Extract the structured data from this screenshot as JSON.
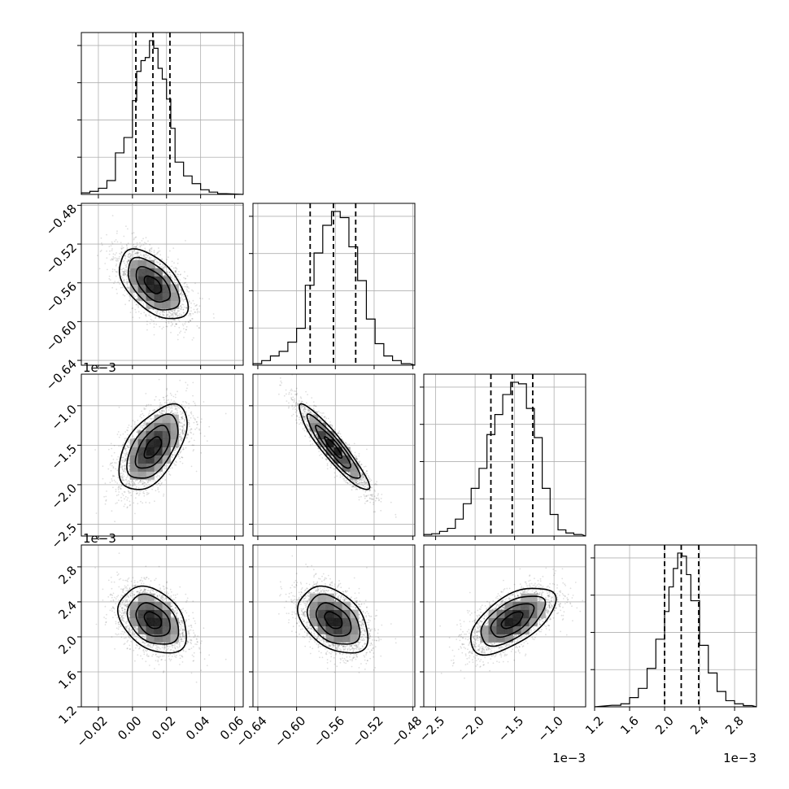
{
  "chart_data": {
    "type": "corner",
    "parameters": [
      {
        "index": 0,
        "range": [
          -0.03,
          0.065
        ],
        "ticks": [
          -0.02,
          0.0,
          0.02,
          0.04,
          0.06
        ],
        "tick_labels": [
          "−0.02",
          "0.00",
          "0.02",
          "0.04",
          "0.06"
        ],
        "offset_text": "",
        "quantiles": [
          0.002,
          0.012,
          0.022
        ],
        "hist": [
          {
            "x0": -0.03,
            "x1": -0.025,
            "v": 1
          },
          {
            "x0": -0.025,
            "x1": -0.02,
            "v": 2
          },
          {
            "x0": -0.02,
            "x1": -0.015,
            "v": 4
          },
          {
            "x0": -0.015,
            "x1": -0.01,
            "v": 9
          },
          {
            "x0": -0.01,
            "x1": -0.005,
            "v": 27
          },
          {
            "x0": -0.005,
            "x1": 0.0,
            "v": 37
          },
          {
            "x0": 0.0,
            "x1": 0.0025,
            "v": 61
          },
          {
            "x0": 0.0025,
            "x1": 0.005,
            "v": 80
          },
          {
            "x0": 0.005,
            "x1": 0.0075,
            "v": 87
          },
          {
            "x0": 0.0075,
            "x1": 0.01,
            "v": 89
          },
          {
            "x0": 0.01,
            "x1": 0.0125,
            "v": 100
          },
          {
            "x0": 0.0125,
            "x1": 0.015,
            "v": 95
          },
          {
            "x0": 0.015,
            "x1": 0.0175,
            "v": 82
          },
          {
            "x0": 0.0175,
            "x1": 0.02,
            "v": 75
          },
          {
            "x0": 0.02,
            "x1": 0.0225,
            "v": 62
          },
          {
            "x0": 0.0225,
            "x1": 0.025,
            "v": 43
          },
          {
            "x0": 0.025,
            "x1": 0.03,
            "v": 21
          },
          {
            "x0": 0.03,
            "x1": 0.035,
            "v": 12
          },
          {
            "x0": 0.035,
            "x1": 0.04,
            "v": 7
          },
          {
            "x0": 0.04,
            "x1": 0.045,
            "v": 3
          },
          {
            "x0": 0.045,
            "x1": 0.05,
            "v": 1.5
          },
          {
            "x0": 0.05,
            "x1": 0.055,
            "v": 0.5
          }
        ]
      },
      {
        "index": 1,
        "range": [
          -0.645,
          -0.478
        ],
        "ticks": [
          -0.64,
          -0.6,
          -0.56,
          -0.52,
          -0.48
        ],
        "tick_labels": [
          "−0.64",
          "−0.60",
          "−0.56",
          "−0.52",
          "−0.48"
        ],
        "offset_text": "",
        "quantiles": [
          -0.586,
          -0.562,
          -0.539
        ],
        "hist": [
          {
            "x0": -0.645,
            "x1": -0.636,
            "v": 1
          },
          {
            "x0": -0.636,
            "x1": -0.627,
            "v": 3
          },
          {
            "x0": -0.627,
            "x1": -0.618,
            "v": 6
          },
          {
            "x0": -0.618,
            "x1": -0.609,
            "v": 9
          },
          {
            "x0": -0.609,
            "x1": -0.6,
            "v": 15
          },
          {
            "x0": -0.6,
            "x1": -0.591,
            "v": 24
          },
          {
            "x0": -0.591,
            "x1": -0.582,
            "v": 52
          },
          {
            "x0": -0.582,
            "x1": -0.573,
            "v": 73
          },
          {
            "x0": -0.573,
            "x1": -0.564,
            "v": 91
          },
          {
            "x0": -0.564,
            "x1": -0.555,
            "v": 100
          },
          {
            "x0": -0.555,
            "x1": -0.546,
            "v": 96
          },
          {
            "x0": -0.546,
            "x1": -0.537,
            "v": 77
          },
          {
            "x0": -0.537,
            "x1": -0.528,
            "v": 55
          },
          {
            "x0": -0.528,
            "x1": -0.519,
            "v": 30
          },
          {
            "x0": -0.519,
            "x1": -0.51,
            "v": 14
          },
          {
            "x0": -0.51,
            "x1": -0.501,
            "v": 6
          },
          {
            "x0": -0.501,
            "x1": -0.492,
            "v": 3
          },
          {
            "x0": -0.492,
            "x1": -0.483,
            "v": 1
          }
        ]
      },
      {
        "index": 2,
        "range": [
          -2.65,
          -0.6
        ],
        "ticks": [
          -2.5,
          -2.0,
          -1.5,
          -1.0
        ],
        "tick_labels": [
          "−2.5",
          "−2.0",
          "−1.5",
          "−1.0"
        ],
        "offset_text": "1e−3",
        "quantiles": [
          -1.8,
          -1.53,
          -1.27
        ],
        "hist": [
          {
            "x0": -2.65,
            "x1": -2.55,
            "v": 1
          },
          {
            "x0": -2.55,
            "x1": -2.45,
            "v": 1.5
          },
          {
            "x0": -2.45,
            "x1": -2.35,
            "v": 3
          },
          {
            "x0": -2.35,
            "x1": -2.25,
            "v": 5
          },
          {
            "x0": -2.25,
            "x1": -2.15,
            "v": 11
          },
          {
            "x0": -2.15,
            "x1": -2.05,
            "v": 21
          },
          {
            "x0": -2.05,
            "x1": -1.95,
            "v": 31
          },
          {
            "x0": -1.95,
            "x1": -1.85,
            "v": 44
          },
          {
            "x0": -1.85,
            "x1": -1.75,
            "v": 66
          },
          {
            "x0": -1.75,
            "x1": -1.65,
            "v": 79
          },
          {
            "x0": -1.65,
            "x1": -1.55,
            "v": 92
          },
          {
            "x0": -1.55,
            "x1": -1.45,
            "v": 100
          },
          {
            "x0": -1.45,
            "x1": -1.35,
            "v": 99
          },
          {
            "x0": -1.35,
            "x1": -1.25,
            "v": 83
          },
          {
            "x0": -1.25,
            "x1": -1.15,
            "v": 64
          },
          {
            "x0": -1.15,
            "x1": -1.05,
            "v": 31
          },
          {
            "x0": -1.05,
            "x1": -0.95,
            "v": 14
          },
          {
            "x0": -0.95,
            "x1": -0.85,
            "v": 4
          },
          {
            "x0": -0.85,
            "x1": -0.75,
            "v": 2
          },
          {
            "x0": -0.75,
            "x1": -0.65,
            "v": 1
          }
        ]
      },
      {
        "index": 3,
        "range": [
          1.2,
          3.05
        ],
        "ticks": [
          1.2,
          1.6,
          2.0,
          2.4,
          2.8
        ],
        "tick_labels": [
          "1.2",
          "1.6",
          "2.0",
          "2.4",
          "2.8"
        ],
        "offset_text": "1e−3",
        "quantiles": [
          2.0,
          2.19,
          2.39
        ],
        "hist": [
          {
            "x0": 1.4,
            "x1": 1.5,
            "v": 1
          },
          {
            "x0": 1.5,
            "x1": 1.6,
            "v": 2
          },
          {
            "x0": 1.6,
            "x1": 1.7,
            "v": 6
          },
          {
            "x0": 1.7,
            "x1": 1.8,
            "v": 12
          },
          {
            "x0": 1.8,
            "x1": 1.9,
            "v": 25
          },
          {
            "x0": 1.9,
            "x1": 2.0,
            "v": 44
          },
          {
            "x0": 2.0,
            "x1": 2.05,
            "v": 62
          },
          {
            "x0": 2.05,
            "x1": 2.1,
            "v": 78
          },
          {
            "x0": 2.1,
            "x1": 2.15,
            "v": 90
          },
          {
            "x0": 2.15,
            "x1": 2.2,
            "v": 100
          },
          {
            "x0": 2.2,
            "x1": 2.25,
            "v": 98
          },
          {
            "x0": 2.25,
            "x1": 2.3,
            "v": 86
          },
          {
            "x0": 2.3,
            "x1": 2.4,
            "v": 69
          },
          {
            "x0": 2.4,
            "x1": 2.5,
            "v": 40
          },
          {
            "x0": 2.5,
            "x1": 2.6,
            "v": 22
          },
          {
            "x0": 2.6,
            "x1": 2.7,
            "v": 10
          },
          {
            "x0": 2.7,
            "x1": 2.8,
            "v": 4
          },
          {
            "x0": 2.8,
            "x1": 2.9,
            "v": 2
          },
          {
            "x0": 2.9,
            "x1": 3.0,
            "v": 0.8
          }
        ]
      }
    ],
    "joint": [
      {
        "row": 1,
        "col": 0,
        "center": [
          0.012,
          -0.562
        ],
        "sd": [
          0.01,
          0.018
        ],
        "rho": -0.55
      },
      {
        "row": 2,
        "col": 0,
        "center": [
          0.012,
          -1.53
        ],
        "sd": [
          0.01,
          0.27
        ],
        "rho": 0.55
      },
      {
        "row": 2,
        "col": 1,
        "center": [
          -0.562,
          -1.53
        ],
        "sd": [
          0.018,
          0.27
        ],
        "rho": -0.92
      },
      {
        "row": 3,
        "col": 0,
        "center": [
          0.012,
          2.19
        ],
        "sd": [
          0.01,
          0.19
        ],
        "rho": -0.35
      },
      {
        "row": 3,
        "col": 1,
        "center": [
          -0.562,
          2.19
        ],
        "sd": [
          0.018,
          0.19
        ],
        "rho": -0.4
      },
      {
        "row": 3,
        "col": 2,
        "center": [
          -1.53,
          2.19
        ],
        "sd": [
          0.27,
          0.19
        ],
        "rho": 0.6
      }
    ],
    "contour_levels_sigma": [
      0.5,
      1.0,
      1.5,
      2.0
    ],
    "grid": true,
    "density_grid_bins": 20,
    "density_colormap": "greys"
  }
}
